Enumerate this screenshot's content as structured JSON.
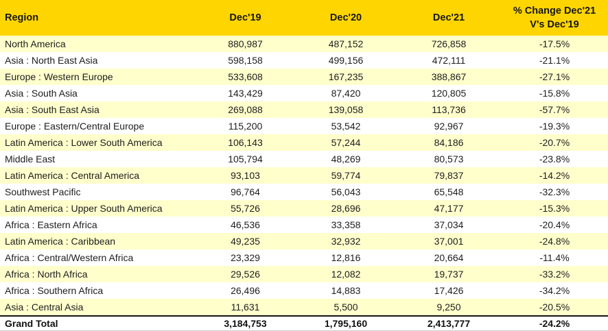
{
  "colors": {
    "header_bg": "#FFD500",
    "row_alt_bg": "#FFFFCC",
    "row_bg": "#FFFFFF",
    "text": "#1D1D1D",
    "total_border": "#151515"
  },
  "table": {
    "header": {
      "region_label": "Region",
      "col_dec19": "Dec'19",
      "col_dec20": "Dec'20",
      "col_dec21": "Dec'21",
      "pct_line1": "% Change Dec'21",
      "pct_line2": "V's Dec'19"
    },
    "rows": [
      {
        "region": "North America",
        "dec19": "880,987",
        "dec20": "487,152",
        "dec21": "726,858",
        "pct": "-17.5%"
      },
      {
        "region": "Asia : North East Asia",
        "dec19": "598,158",
        "dec20": "499,156",
        "dec21": "472,111",
        "pct": "-21.1%"
      },
      {
        "region": "Europe : Western Europe",
        "dec19": "533,608",
        "dec20": "167,235",
        "dec21": "388,867",
        "pct": "-27.1%"
      },
      {
        "region": "Asia : South Asia",
        "dec19": "143,429",
        "dec20": "87,420",
        "dec21": "120,805",
        "pct": "-15.8%"
      },
      {
        "region": "Asia : South East Asia",
        "dec19": "269,088",
        "dec20": "139,058",
        "dec21": "113,736",
        "pct": "-57.7%"
      },
      {
        "region": "Europe : Eastern/Central Europe",
        "dec19": "115,200",
        "dec20": "53,542",
        "dec21": "92,967",
        "pct": "-19.3%"
      },
      {
        "region": "Latin America : Lower South America",
        "dec19": "106,143",
        "dec20": "57,244",
        "dec21": "84,186",
        "pct": "-20.7%"
      },
      {
        "region": "Middle East",
        "dec19": "105,794",
        "dec20": "48,269",
        "dec21": "80,573",
        "pct": "-23.8%"
      },
      {
        "region": "Latin America : Central America",
        "dec19": "93,103",
        "dec20": "59,774",
        "dec21": "79,837",
        "pct": "-14.2%"
      },
      {
        "region": "Southwest Pacific",
        "dec19": "96,764",
        "dec20": "56,043",
        "dec21": "65,548",
        "pct": "-32.3%"
      },
      {
        "region": "Latin America : Upper South America",
        "dec19": "55,726",
        "dec20": "28,696",
        "dec21": "47,177",
        "pct": "-15.3%"
      },
      {
        "region": "Africa : Eastern Africa",
        "dec19": "46,536",
        "dec20": "33,358",
        "dec21": "37,034",
        "pct": "-20.4%"
      },
      {
        "region": "Latin America : Caribbean",
        "dec19": "49,235",
        "dec20": "32,932",
        "dec21": "37,001",
        "pct": "-24.8%"
      },
      {
        "region": "Africa : Central/Western Africa",
        "dec19": "23,329",
        "dec20": "12,816",
        "dec21": "20,664",
        "pct": "-11.4%"
      },
      {
        "region": "Africa : North Africa",
        "dec19": "29,526",
        "dec20": "12,082",
        "dec21": "19,737",
        "pct": "-33.2%"
      },
      {
        "region": "Africa : Southern Africa",
        "dec19": "26,496",
        "dec20": "14,883",
        "dec21": "17,426",
        "pct": "-34.2%"
      },
      {
        "region": "Asia : Central Asia",
        "dec19": "11,631",
        "dec20": "5,500",
        "dec21": "9,250",
        "pct": "-20.5%"
      }
    ],
    "grand_total": {
      "label": "Grand Total",
      "dec19": "3,184,753",
      "dec20": "1,795,160",
      "dec21": "2,413,777",
      "pct": "-24.2%"
    }
  },
  "chart_data": {
    "type": "table",
    "title": "",
    "columns": [
      "Region",
      "Dec'19",
      "Dec'20",
      "Dec'21",
      "% Change Dec'21 V's Dec'19"
    ],
    "rows": [
      [
        "North America",
        880987,
        487152,
        726858,
        -17.5
      ],
      [
        "Asia : North East Asia",
        598158,
        499156,
        472111,
        -21.1
      ],
      [
        "Europe : Western Europe",
        533608,
        167235,
        388867,
        -27.1
      ],
      [
        "Asia : South Asia",
        143429,
        87420,
        120805,
        -15.8
      ],
      [
        "Asia : South East Asia",
        269088,
        139058,
        113736,
        -57.7
      ],
      [
        "Europe : Eastern/Central Europe",
        115200,
        53542,
        92967,
        -19.3
      ],
      [
        "Latin America : Lower South America",
        106143,
        57244,
        84186,
        -20.7
      ],
      [
        "Middle East",
        105794,
        48269,
        80573,
        -23.8
      ],
      [
        "Latin America : Central America",
        93103,
        59774,
        79837,
        -14.2
      ],
      [
        "Southwest Pacific",
        96764,
        56043,
        65548,
        -32.3
      ],
      [
        "Latin America : Upper South America",
        55726,
        28696,
        47177,
        -15.3
      ],
      [
        "Africa : Eastern Africa",
        46536,
        33358,
        37034,
        -20.4
      ],
      [
        "Latin America : Caribbean",
        49235,
        32932,
        37001,
        -24.8
      ],
      [
        "Africa : Central/Western Africa",
        23329,
        12816,
        20664,
        -11.4
      ],
      [
        "Africa : North Africa",
        29526,
        12082,
        19737,
        -33.2
      ],
      [
        "Africa : Southern Africa",
        26496,
        14883,
        17426,
        -34.2
      ],
      [
        "Asia : Central Asia",
        11631,
        5500,
        9250,
        -20.5
      ]
    ],
    "grand_total": [
      "Grand Total",
      3184753,
      1795160,
      2413777,
      -24.2
    ]
  }
}
